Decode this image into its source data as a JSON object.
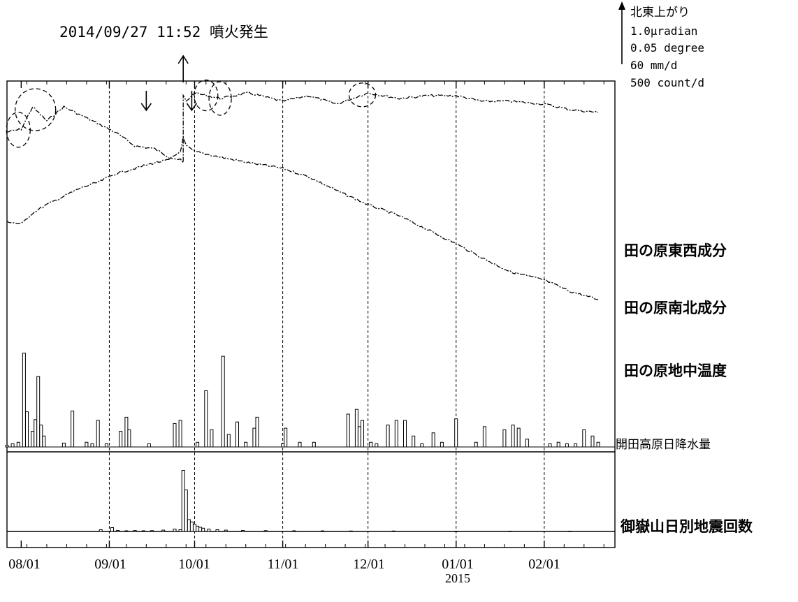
{
  "event": {
    "label": "2014/09/27 11:52 噴火発生"
  },
  "scale": {
    "title": "北東上がり",
    "tilt": "1.0μradian",
    "temperature": "0.05 degree",
    "precipitation": "60 mm/d",
    "earthquakes": "500 count/d"
  },
  "series_labels": {
    "ew": "田の原東西成分",
    "ns": "田の原南北成分",
    "temp": "田の原地中温度",
    "precip": "開田高原日降水量",
    "quake": "御嶽山日別地震回数"
  },
  "x_axis": {
    "ticks": [
      "08/01",
      "09/01",
      "10/01",
      "11/01",
      "12/01",
      "01/01",
      "02/01"
    ],
    "year_label": "2015"
  },
  "chart_data": {
    "type": "line",
    "x_ticks": [
      "08/01",
      "09/01",
      "10/01",
      "11/01",
      "12/01",
      "01/01",
      "02/01"
    ],
    "event_date": "2014/09/27",
    "series": [
      {
        "name": "田の原東西成分",
        "style": "dash-dot",
        "x": [
          "2014-07-27",
          "2014-08-01",
          "2014-08-05",
          "2014-08-10",
          "2014-08-16",
          "2014-08-22",
          "2014-08-28",
          "2014-09-03",
          "2014-09-10",
          "2014-09-17",
          "2014-09-22",
          "2014-09-26",
          "2014-09-27",
          "2014-09-27",
          "2014-09-28",
          "2014-10-01",
          "2014-10-10",
          "2014-10-20",
          "2014-11-01",
          "2014-11-10",
          "2014-11-20",
          "2014-12-01",
          "2014-12-12",
          "2014-12-22",
          "2015-01-01",
          "2015-01-10",
          "2015-01-20",
          "2015-02-01",
          "2015-02-10",
          "2015-02-20"
        ],
        "y": [
          6.9,
          7.0,
          7.8,
          7.3,
          7.8,
          7.5,
          7.2,
          6.9,
          6.4,
          6.3,
          6.0,
          5.9,
          5.8,
          8.2,
          8.0,
          8.3,
          8.1,
          8.3,
          8.0,
          8.2,
          7.9,
          8.3,
          8.1,
          8.2,
          8.2,
          8.0,
          8.0,
          7.9,
          7.7,
          7.6
        ]
      },
      {
        "name": "田の原南北成分",
        "style": "dash-dot",
        "x": [
          "2014-07-27",
          "2014-08-01",
          "2014-08-05",
          "2014-08-10",
          "2014-08-16",
          "2014-08-22",
          "2014-08-28",
          "2014-09-03",
          "2014-09-10",
          "2014-09-17",
          "2014-09-22",
          "2014-09-26",
          "2014-09-27",
          "2014-09-28",
          "2014-10-01",
          "2014-10-10",
          "2014-10-20",
          "2014-11-01",
          "2014-11-10",
          "2014-11-20",
          "2014-12-01",
          "2014-12-12",
          "2014-12-22",
          "2015-01-01",
          "2015-01-10",
          "2015-01-20",
          "2015-02-01",
          "2015-02-10",
          "2015-02-20"
        ],
        "y": [
          3.7,
          3.6,
          4.0,
          4.3,
          4.6,
          4.9,
          5.1,
          5.4,
          5.6,
          5.8,
          5.9,
          6.2,
          6.7,
          6.4,
          6.2,
          6.0,
          5.8,
          5.6,
          5.3,
          4.8,
          4.3,
          3.9,
          3.4,
          2.9,
          2.4,
          1.9,
          1.6,
          1.2,
          0.9
        ]
      }
    ],
    "annotations": [
      {
        "type": "arrow-down",
        "date": "2014-09-14"
      },
      {
        "type": "arrow-up",
        "date": "2014-09-27",
        "label": "2014/09/27 11:52 噴火発生"
      },
      {
        "type": "arrow-down",
        "date": "2014-09-30"
      },
      {
        "type": "dashed-circle",
        "series": "田の原東西成分",
        "date": "2014-07-31"
      },
      {
        "type": "dashed-circle",
        "series": "田の原東西成分",
        "date": "2014-08-06"
      },
      {
        "type": "dashed-circle",
        "series": "田の原東西成分",
        "date": "2014-10-05"
      },
      {
        "type": "dashed-circle",
        "series": "田の原東西成分",
        "date": "2014-10-10"
      },
      {
        "type": "dashed-circle",
        "series": "田の原東西成分",
        "date": "2014-11-29"
      }
    ],
    "precipitation": {
      "name": "開田高原日降水量",
      "unit": "mm/d",
      "scale_bar": 60,
      "bars": [
        [
          "2014-07-27",
          2
        ],
        [
          "2014-07-29",
          4
        ],
        [
          "2014-07-31",
          6
        ],
        [
          "2014-08-02",
          120
        ],
        [
          "2014-08-03",
          45
        ],
        [
          "2014-08-05",
          20
        ],
        [
          "2014-08-06",
          35
        ],
        [
          "2014-08-07",
          90
        ],
        [
          "2014-08-08",
          28
        ],
        [
          "2014-08-09",
          14
        ],
        [
          "2014-08-16",
          5
        ],
        [
          "2014-08-19",
          46
        ],
        [
          "2014-08-24",
          6
        ],
        [
          "2014-08-26",
          4
        ],
        [
          "2014-08-28",
          34
        ],
        [
          "2014-08-31",
          4
        ],
        [
          "2014-09-05",
          20
        ],
        [
          "2014-09-07",
          38
        ],
        [
          "2014-09-08",
          22
        ],
        [
          "2014-09-15",
          4
        ],
        [
          "2014-09-24",
          30
        ],
        [
          "2014-09-26",
          34
        ],
        [
          "2014-10-02",
          6
        ],
        [
          "2014-10-05",
          72
        ],
        [
          "2014-10-07",
          22
        ],
        [
          "2014-10-11",
          116
        ],
        [
          "2014-10-13",
          16
        ],
        [
          "2014-10-16",
          32
        ],
        [
          "2014-10-19",
          6
        ],
        [
          "2014-10-22",
          24
        ],
        [
          "2014-10-23",
          38
        ],
        [
          "2014-11-01",
          4
        ],
        [
          "2014-11-02",
          24
        ],
        [
          "2014-11-07",
          6
        ],
        [
          "2014-11-12",
          6
        ],
        [
          "2014-11-24",
          42
        ],
        [
          "2014-11-27",
          48
        ],
        [
          "2014-11-28",
          26
        ],
        [
          "2014-11-29",
          34
        ],
        [
          "2014-12-02",
          6
        ],
        [
          "2014-12-04",
          4
        ],
        [
          "2014-12-08",
          28
        ],
        [
          "2014-12-11",
          34
        ],
        [
          "2014-12-14",
          34
        ],
        [
          "2014-12-17",
          14
        ],
        [
          "2014-12-20",
          4
        ],
        [
          "2014-12-24",
          18
        ],
        [
          "2014-12-27",
          6
        ],
        [
          "2015-01-01",
          36
        ],
        [
          "2015-01-08",
          6
        ],
        [
          "2015-01-11",
          26
        ],
        [
          "2015-01-18",
          22
        ],
        [
          "2015-01-21",
          28
        ],
        [
          "2015-01-23",
          24
        ],
        [
          "2015-01-26",
          10
        ],
        [
          "2015-02-03",
          4
        ],
        [
          "2015-02-06",
          6
        ],
        [
          "2015-02-09",
          4
        ],
        [
          "2015-02-12",
          4
        ],
        [
          "2015-02-15",
          22
        ],
        [
          "2015-02-18",
          14
        ],
        [
          "2015-02-20",
          6
        ]
      ]
    },
    "earthquakes": {
      "name": "御嶽山日別地震回数",
      "unit": "count/d",
      "scale_bar": 500,
      "bars": [
        [
          "2014-08-29",
          30
        ],
        [
          "2014-09-02",
          65
        ],
        [
          "2014-09-04",
          18
        ],
        [
          "2014-09-07",
          12
        ],
        [
          "2014-09-10",
          16
        ],
        [
          "2014-09-13",
          12
        ],
        [
          "2014-09-16",
          14
        ],
        [
          "2014-09-20",
          22
        ],
        [
          "2014-09-24",
          40
        ],
        [
          "2014-09-26",
          30
        ],
        [
          "2014-09-27",
          1030
        ],
        [
          "2014-09-28",
          700
        ],
        [
          "2014-09-29",
          200
        ],
        [
          "2014-09-30",
          160
        ],
        [
          "2014-10-01",
          120
        ],
        [
          "2014-10-02",
          90
        ],
        [
          "2014-10-03",
          70
        ],
        [
          "2014-10-04",
          55
        ],
        [
          "2014-10-06",
          40
        ],
        [
          "2014-10-09",
          30
        ],
        [
          "2014-10-12",
          22
        ],
        [
          "2014-10-18",
          18
        ],
        [
          "2014-10-26",
          14
        ],
        [
          "2014-11-05",
          12
        ],
        [
          "2014-11-15",
          10
        ],
        [
          "2014-11-25",
          8
        ],
        [
          "2014-12-10",
          8
        ],
        [
          "2015-01-01",
          6
        ],
        [
          "2015-01-20",
          6
        ],
        [
          "2015-02-10",
          6
        ]
      ]
    }
  }
}
